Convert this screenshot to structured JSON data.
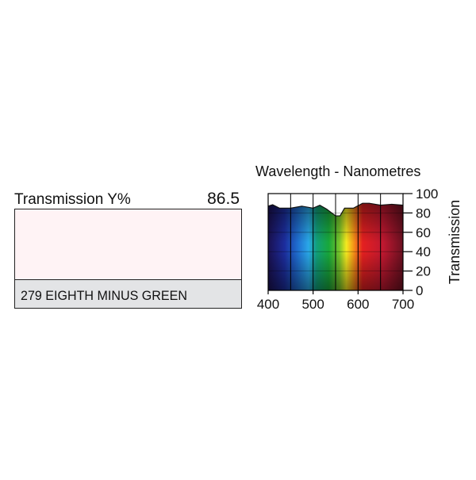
{
  "filter": {
    "transmission_label": "Transmission Y%",
    "transmission_value": "86.5",
    "name": "279 EIGHTH MINUS GREEN"
  },
  "chart_data": {
    "type": "area",
    "title": "Wavelength - Nanometres",
    "y_label": "Transmission",
    "x": [
      400,
      410,
      425,
      450,
      475,
      500,
      515,
      530,
      550,
      560,
      570,
      590,
      610,
      625,
      650,
      675,
      700
    ],
    "values": [
      87,
      88.5,
      85,
      85,
      87,
      85,
      88,
      84,
      77,
      77,
      85,
      85,
      90,
      90,
      88,
      89,
      88
    ],
    "xlim": [
      400,
      700
    ],
    "ylim": [
      0,
      100
    ],
    "xticks": [
      400,
      500,
      600,
      700
    ],
    "yticks": [
      0,
      20,
      40,
      60,
      80,
      100
    ],
    "x_minor_ticks": [
      450,
      550,
      650
    ],
    "grid": true
  }
}
